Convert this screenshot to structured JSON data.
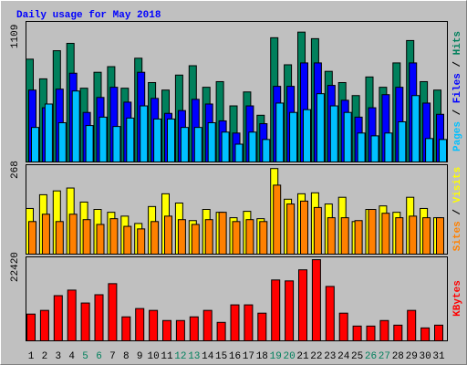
{
  "chart_data": [
    {
      "type": "bar",
      "title": "Daily usage for May 2018",
      "ylim": [
        0,
        1200
      ],
      "yticks": [
        1109
      ],
      "legend_separator": " / ",
      "series": [
        {
          "name": "Pages",
          "color": "#00c0ff",
          "values": [
            295,
            495,
            335,
            606,
            311,
            383,
            303,
            375,
            479,
            367,
            367,
            295,
            295,
            335,
            255,
            152,
            255,
            192,
            503,
            423,
            447,
            583,
            479,
            423,
            247,
            223,
            247,
            343,
            567,
            200,
            192
          ]
        },
        {
          "name": "Files",
          "color": "#0000ff",
          "values": [
            614,
            463,
            622,
            758,
            423,
            551,
            638,
            511,
            766,
            543,
            415,
            439,
            535,
            495,
            351,
            247,
            479,
            327,
            646,
            646,
            846,
            846,
            654,
            527,
            383,
            463,
            575,
            638,
            846,
            503,
            407
          ]
        },
        {
          "name": "Hits",
          "color": "#00805c",
          "values": [
            878,
            710,
            950,
            1013,
            630,
            766,
            814,
            630,
            886,
            678,
            614,
            742,
            822,
            638,
            686,
            479,
            598,
            399,
            1061,
            830,
            1109,
            1053,
            774,
            678,
            567,
            726,
            638,
            846,
            1037,
            686,
            614
          ]
        }
      ]
    },
    {
      "type": "bar",
      "ylim": [
        0,
        280
      ],
      "yticks": [
        268
      ],
      "legend_separator": " / ",
      "series": [
        {
          "name": "Sites",
          "color": "#ff8000",
          "values": [
            102,
            125,
            102,
            125,
            108,
            93,
            111,
            87,
            79,
            102,
            119,
            108,
            93,
            108,
            131,
            102,
            108,
            102,
            216,
            157,
            166,
            146,
            114,
            114,
            105,
            140,
            128,
            114,
            119,
            114,
            114
          ]
        },
        {
          "name": "Visits",
          "color": "#ffff00",
          "values": [
            143,
            186,
            198,
            207,
            163,
            140,
            131,
            119,
            96,
            149,
            189,
            160,
            105,
            140,
            131,
            114,
            134,
            111,
            268,
            172,
            189,
            192,
            157,
            178,
            102,
            140,
            151,
            131,
            178,
            143,
            114
          ]
        }
      ]
    },
    {
      "type": "bar",
      "ylim": [
        0,
        23200
      ],
      "yticks": [
        22420
      ],
      "categories": [
        "1",
        "2",
        "3",
        "4",
        "5",
        "6",
        "7",
        "8",
        "9",
        "10",
        "11",
        "12",
        "13",
        "14",
        "15",
        "16",
        "17",
        "18",
        "19",
        "20",
        "21",
        "22",
        "23",
        "24",
        "25",
        "26",
        "27",
        "28",
        "29",
        "30",
        "31"
      ],
      "category_colors": [
        "#000000",
        "#000000",
        "#000000",
        "#000000",
        "#00805c",
        "#00805c",
        "#000000",
        "#000000",
        "#000000",
        "#000000",
        "#000000",
        "#00805c",
        "#00805c",
        "#000000",
        "#000000",
        "#000000",
        "#000000",
        "#000000",
        "#00805c",
        "#00805c",
        "#000000",
        "#000000",
        "#000000",
        "#000000",
        "#000000",
        "#00805c",
        "#00805c",
        "#000000",
        "#000000",
        "#000000",
        "#000000"
      ],
      "series": [
        {
          "name": "KBytes",
          "color": "#ff0000",
          "values": [
            7389,
            8408,
            12485,
            14014,
            10447,
            12740,
            15798,
            6625,
            8918,
            8408,
            5606,
            5606,
            6625,
            8408,
            5096,
            9937,
            9937,
            7644,
            16817,
            16562,
            19620,
            22420,
            15033,
            7644,
            4077,
            4077,
            5606,
            4332,
            8408,
            3567,
            4332
          ]
        }
      ]
    }
  ]
}
